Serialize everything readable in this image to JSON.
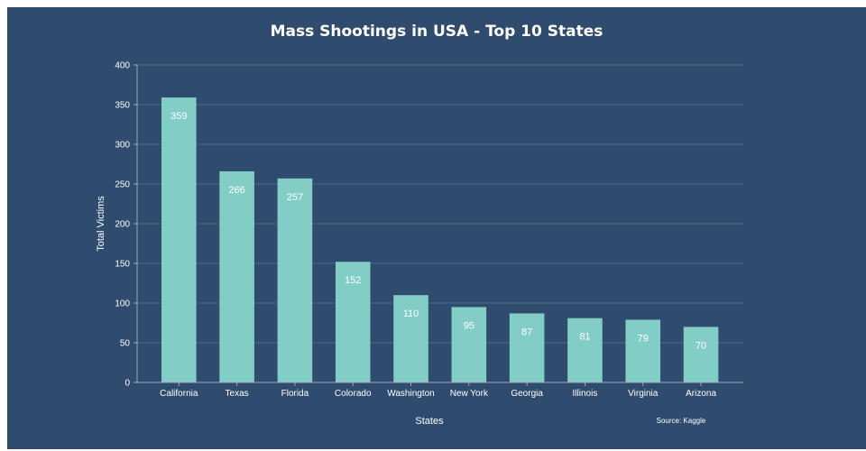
{
  "chart_data": {
    "type": "bar",
    "title": "Mass Shootings in USA - Top 10 States",
    "xlabel": "States",
    "ylabel": "Total Victims",
    "source": "Source: Kaggle",
    "categories": [
      "California",
      "Texas",
      "Florida",
      "Colorado",
      "Washington",
      "New York",
      "Georgia",
      "Illinois",
      "Virginia",
      "Arizona"
    ],
    "values": [
      359,
      266,
      257,
      152,
      110,
      95,
      87,
      81,
      79,
      70
    ],
    "ylim": [
      0,
      400
    ],
    "yticks": [
      0,
      50,
      100,
      150,
      200,
      250,
      300,
      350,
      400
    ],
    "grid": true,
    "colors": {
      "background": "#2f4b6e",
      "bar": "#82cdc5",
      "text": "#ffffff"
    }
  }
}
